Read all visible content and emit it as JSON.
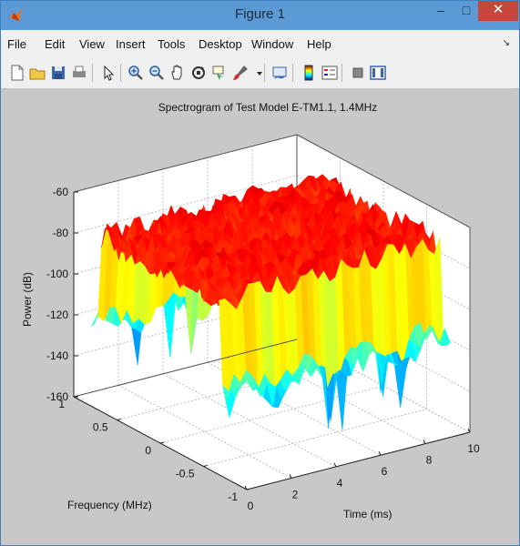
{
  "window": {
    "title": "Figure 1",
    "minimize": "–",
    "maximize": "□",
    "close": "✕"
  },
  "menu": [
    "File",
    "Edit",
    "View",
    "Insert",
    "Tools",
    "Desktop",
    "Window",
    "Help"
  ],
  "toolbar_icons": [
    "new-figure-icon",
    "open-file-icon",
    "save-icon",
    "print-icon",
    "edit-plot-arrow-icon",
    "zoom-in-icon",
    "zoom-out-icon",
    "pan-hand-icon",
    "rotate-3d-icon",
    "data-cursor-icon",
    "brush-icon",
    "brush-dropdown-icon",
    "link-plot-icon",
    "colorbar-icon",
    "legend-icon",
    "hide-plot-tools-icon",
    "show-plot-tools-icon"
  ],
  "chart_data": {
    "type": "surface",
    "title": "Spectrogram of Test Model E-TM1.1, 1.4MHz",
    "xlabel": "Frequency (MHz)",
    "ylabel": "Time (ms)",
    "zlabel": "Power (dB)",
    "xlim": [
      -1,
      1
    ],
    "ylim": [
      0,
      10
    ],
    "zlim": [
      -160,
      -60
    ],
    "xticks": [
      "1",
      "0.5",
      "0",
      "-0.5",
      "-1"
    ],
    "yticks": [
      "0",
      "2",
      "4",
      "6",
      "8",
      "10"
    ],
    "zticks": [
      "-60",
      "-80",
      "-100",
      "-120",
      "-140",
      "-160"
    ],
    "grid": true,
    "colormap": "jet",
    "description_values": {
      "in_band_power_db": -75,
      "out_of_band_power_db": -120,
      "in_band_frequency_mhz": [
        -0.7,
        0.7
      ]
    }
  }
}
